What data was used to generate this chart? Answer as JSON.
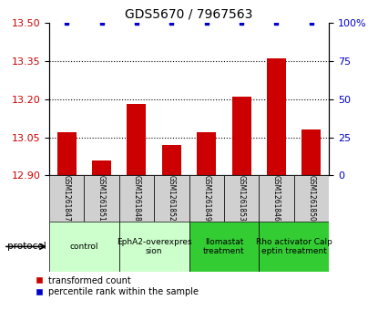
{
  "title": "GDS5670 / 7967563",
  "samples": [
    "GSM1261847",
    "GSM1261851",
    "GSM1261848",
    "GSM1261852",
    "GSM1261849",
    "GSM1261853",
    "GSM1261846",
    "GSM1261850"
  ],
  "transformed_counts": [
    13.07,
    12.96,
    13.18,
    13.02,
    13.07,
    13.21,
    13.36,
    13.08
  ],
  "percentile_ranks": [
    100,
    100,
    100,
    100,
    100,
    100,
    100,
    100
  ],
  "ylim_left": [
    12.9,
    13.5
  ],
  "ylim_right": [
    0,
    100
  ],
  "yticks_left": [
    12.9,
    13.05,
    13.2,
    13.35,
    13.5
  ],
  "yticks_right": [
    0,
    25,
    50,
    75,
    100
  ],
  "bar_color": "#cc0000",
  "dot_color": "#0000cc",
  "protocols": [
    {
      "label": "control",
      "start": 0,
      "end": 2,
      "color": "#ccffcc"
    },
    {
      "label": "EphA2-overexpres\nsion",
      "start": 2,
      "end": 4,
      "color": "#ccffcc"
    },
    {
      "label": "Ilomastat\ntreatment",
      "start": 4,
      "end": 6,
      "color": "#33cc33"
    },
    {
      "label": "Rho activator Calp\neptin treatment",
      "start": 6,
      "end": 8,
      "color": "#33cc33"
    }
  ],
  "protocol_label": "protocol",
  "legend_bar_label": "transformed count",
  "legend_dot_label": "percentile rank within the sample",
  "bar_width": 0.55,
  "tick_label_color_left": "#cc0000",
  "tick_label_color_right": "#0000cc",
  "sample_box_color": "#d0d0d0",
  "background_color": "#ffffff"
}
